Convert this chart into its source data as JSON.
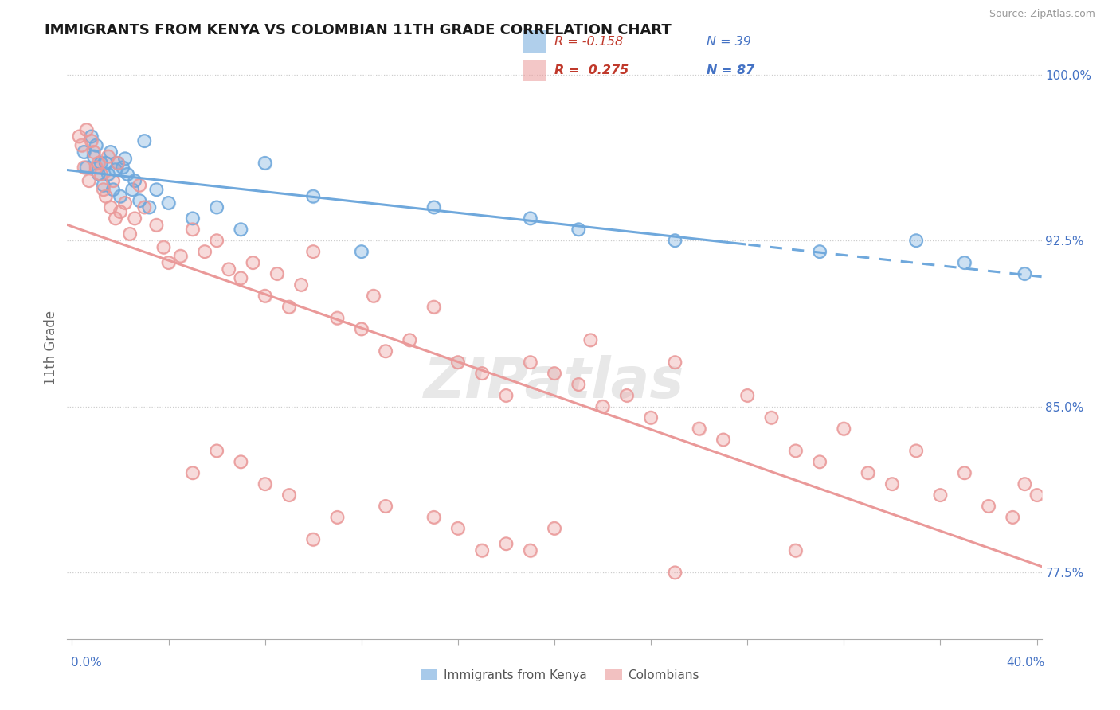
{
  "title": "IMMIGRANTS FROM KENYA VS COLOMBIAN 11TH GRADE CORRELATION CHART",
  "source_text": "Source: ZipAtlas.com",
  "ylabel": "11th Grade",
  "y_min": 0.745,
  "y_max": 1.008,
  "x_min": -0.002,
  "x_max": 0.402,
  "watermark": "ZIPatlas",
  "blue_color": "#6fa8dc",
  "pink_color": "#ea9999",
  "blue_scatter": [
    [
      0.005,
      0.965
    ],
    [
      0.006,
      0.958
    ],
    [
      0.008,
      0.972
    ],
    [
      0.009,
      0.963
    ],
    [
      0.01,
      0.968
    ],
    [
      0.011,
      0.955
    ],
    [
      0.012,
      0.96
    ],
    [
      0.013,
      0.95
    ],
    [
      0.014,
      0.96
    ],
    [
      0.015,
      0.955
    ],
    [
      0.016,
      0.965
    ],
    [
      0.017,
      0.948
    ],
    [
      0.018,
      0.957
    ],
    [
      0.019,
      0.96
    ],
    [
      0.02,
      0.945
    ],
    [
      0.021,
      0.958
    ],
    [
      0.022,
      0.962
    ],
    [
      0.023,
      0.955
    ],
    [
      0.025,
      0.948
    ],
    [
      0.026,
      0.952
    ],
    [
      0.028,
      0.943
    ],
    [
      0.03,
      0.97
    ],
    [
      0.032,
      0.94
    ],
    [
      0.035,
      0.948
    ],
    [
      0.04,
      0.942
    ],
    [
      0.05,
      0.935
    ],
    [
      0.06,
      0.94
    ],
    [
      0.07,
      0.93
    ],
    [
      0.08,
      0.96
    ],
    [
      0.1,
      0.945
    ],
    [
      0.12,
      0.92
    ],
    [
      0.15,
      0.94
    ],
    [
      0.19,
      0.935
    ],
    [
      0.21,
      0.93
    ],
    [
      0.25,
      0.925
    ],
    [
      0.31,
      0.92
    ],
    [
      0.35,
      0.925
    ],
    [
      0.37,
      0.915
    ],
    [
      0.395,
      0.91
    ]
  ],
  "pink_scatter": [
    [
      0.003,
      0.972
    ],
    [
      0.004,
      0.968
    ],
    [
      0.005,
      0.958
    ],
    [
      0.006,
      0.975
    ],
    [
      0.007,
      0.952
    ],
    [
      0.008,
      0.97
    ],
    [
      0.009,
      0.965
    ],
    [
      0.01,
      0.958
    ],
    [
      0.011,
      0.96
    ],
    [
      0.012,
      0.955
    ],
    [
      0.013,
      0.948
    ],
    [
      0.014,
      0.945
    ],
    [
      0.015,
      0.963
    ],
    [
      0.016,
      0.94
    ],
    [
      0.017,
      0.952
    ],
    [
      0.018,
      0.935
    ],
    [
      0.019,
      0.96
    ],
    [
      0.02,
      0.938
    ],
    [
      0.022,
      0.942
    ],
    [
      0.024,
      0.928
    ],
    [
      0.026,
      0.935
    ],
    [
      0.028,
      0.95
    ],
    [
      0.03,
      0.94
    ],
    [
      0.035,
      0.932
    ],
    [
      0.038,
      0.922
    ],
    [
      0.04,
      0.915
    ],
    [
      0.045,
      0.918
    ],
    [
      0.05,
      0.93
    ],
    [
      0.055,
      0.92
    ],
    [
      0.06,
      0.925
    ],
    [
      0.065,
      0.912
    ],
    [
      0.07,
      0.908
    ],
    [
      0.075,
      0.915
    ],
    [
      0.08,
      0.9
    ],
    [
      0.085,
      0.91
    ],
    [
      0.09,
      0.895
    ],
    [
      0.095,
      0.905
    ],
    [
      0.1,
      0.92
    ],
    [
      0.11,
      0.89
    ],
    [
      0.12,
      0.885
    ],
    [
      0.125,
      0.9
    ],
    [
      0.13,
      0.875
    ],
    [
      0.14,
      0.88
    ],
    [
      0.15,
      0.895
    ],
    [
      0.16,
      0.87
    ],
    [
      0.17,
      0.865
    ],
    [
      0.18,
      0.855
    ],
    [
      0.19,
      0.87
    ],
    [
      0.2,
      0.865
    ],
    [
      0.21,
      0.86
    ],
    [
      0.215,
      0.88
    ],
    [
      0.22,
      0.85
    ],
    [
      0.23,
      0.855
    ],
    [
      0.24,
      0.845
    ],
    [
      0.25,
      0.87
    ],
    [
      0.26,
      0.84
    ],
    [
      0.27,
      0.835
    ],
    [
      0.28,
      0.855
    ],
    [
      0.29,
      0.845
    ],
    [
      0.3,
      0.83
    ],
    [
      0.31,
      0.825
    ],
    [
      0.32,
      0.84
    ],
    [
      0.33,
      0.82
    ],
    [
      0.34,
      0.815
    ],
    [
      0.35,
      0.83
    ],
    [
      0.36,
      0.81
    ],
    [
      0.37,
      0.82
    ],
    [
      0.38,
      0.805
    ],
    [
      0.39,
      0.8
    ],
    [
      0.395,
      0.815
    ],
    [
      0.4,
      0.81
    ],
    [
      0.05,
      0.82
    ],
    [
      0.1,
      0.79
    ],
    [
      0.15,
      0.8
    ],
    [
      0.2,
      0.795
    ],
    [
      0.25,
      0.775
    ],
    [
      0.3,
      0.785
    ],
    [
      0.06,
      0.83
    ],
    [
      0.07,
      0.825
    ],
    [
      0.08,
      0.815
    ],
    [
      0.09,
      0.81
    ],
    [
      0.11,
      0.8
    ],
    [
      0.13,
      0.805
    ],
    [
      0.16,
      0.795
    ],
    [
      0.17,
      0.785
    ],
    [
      0.18,
      0.788
    ],
    [
      0.19,
      0.785
    ]
  ]
}
